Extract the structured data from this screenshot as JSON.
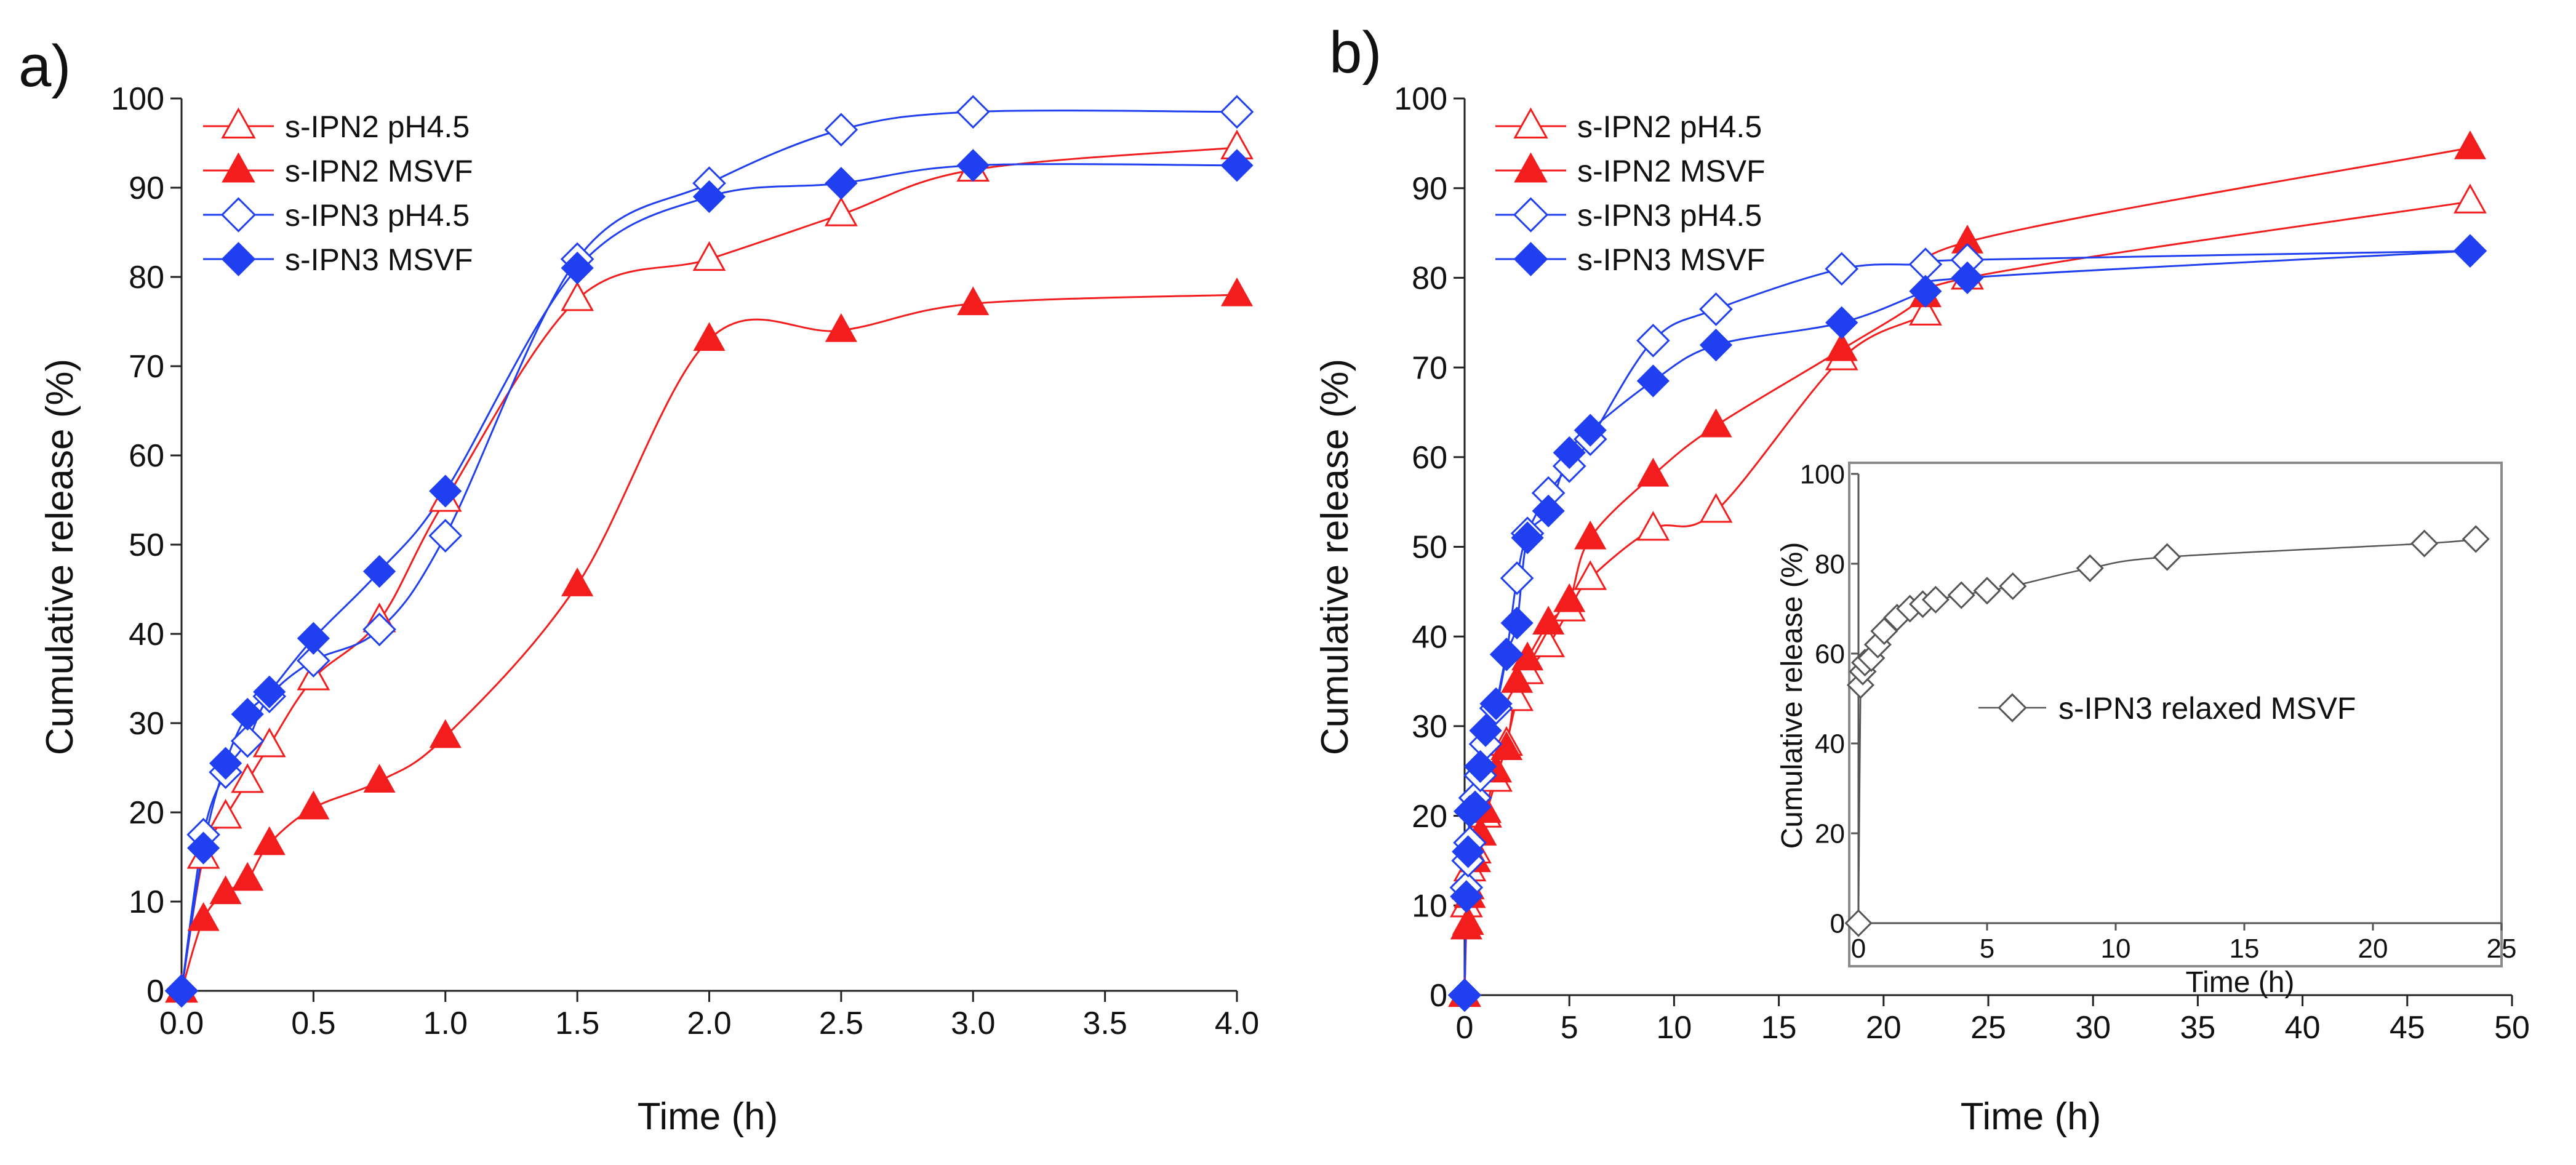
{
  "colors": {
    "red": "#f31d1d",
    "blue": "#1f3ff0",
    "gray": "#555555",
    "black": "#111111"
  },
  "chart_data": [
    {
      "type": "line",
      "panel_label": "a)",
      "xlabel": "Time (h)",
      "ylabel": "Cumulative release (%)",
      "xlim": [
        0,
        4
      ],
      "ylim": [
        0,
        100
      ],
      "xticks": [
        "0.0",
        "0.5",
        "1.0",
        "1.5",
        "2.0",
        "2.5",
        "3.0",
        "3.5",
        "4.0"
      ],
      "yticks": [
        "0",
        "10",
        "20",
        "30",
        "40",
        "50",
        "60",
        "70",
        "80",
        "90",
        "100"
      ],
      "legend_position": "top-left",
      "series": [
        {
          "name": "s-IPN2 pH4.5",
          "color": "#f31d1d",
          "marker": "triangle-open",
          "x": [
            0,
            0.083,
            0.167,
            0.25,
            0.333,
            0.5,
            0.75,
            1.0,
            1.5,
            2.0,
            2.5,
            3.0,
            4.0
          ],
          "y": [
            0,
            15,
            19.5,
            23.5,
            27.5,
            35,
            41.5,
            55,
            77.5,
            82,
            87,
            92,
            94.5
          ]
        },
        {
          "name": "s-IPN2 MSVF",
          "color": "#f31d1d",
          "marker": "triangle-filled",
          "x": [
            0,
            0.083,
            0.167,
            0.25,
            0.333,
            0.5,
            0.75,
            1.0,
            1.5,
            2.0,
            2.5,
            3.0,
            4.0
          ],
          "y": [
            0,
            8,
            11,
            12.5,
            16.5,
            20.5,
            23.5,
            28.5,
            45.5,
            73,
            74,
            77,
            78
          ]
        },
        {
          "name": "s-IPN3 pH4.5",
          "color": "#1f3ff0",
          "marker": "diamond-open",
          "x": [
            0,
            0.083,
            0.167,
            0.25,
            0.333,
            0.5,
            0.75,
            1.0,
            1.5,
            2.0,
            2.5,
            3.0,
            4.0
          ],
          "y": [
            0,
            17.5,
            24.5,
            28,
            33,
            37,
            40.5,
            51,
            82,
            90.5,
            96.5,
            98.5,
            98.5
          ]
        },
        {
          "name": "s-IPN3 MSVF",
          "color": "#1f3ff0",
          "marker": "diamond-filled",
          "x": [
            0,
            0.083,
            0.167,
            0.25,
            0.333,
            0.5,
            0.75,
            1.0,
            1.5,
            2.0,
            2.5,
            3.0,
            4.0
          ],
          "y": [
            0,
            16,
            25.5,
            31,
            33.5,
            39.5,
            47,
            56,
            81,
            89,
            90.5,
            92.5,
            92.5
          ]
        }
      ]
    },
    {
      "type": "line",
      "panel_label": "b)",
      "xlabel": "Time (h)",
      "ylabel": "Cumulative release (%)",
      "xlim": [
        0,
        50
      ],
      "ylim": [
        0,
        100
      ],
      "xticks": [
        "0",
        "5",
        "10",
        "15",
        "20",
        "25",
        "30",
        "35",
        "40",
        "45",
        "50"
      ],
      "yticks": [
        "0",
        "10",
        "20",
        "30",
        "40",
        "50",
        "60",
        "70",
        "80",
        "90",
        "100"
      ],
      "legend_position": "top-left",
      "series": [
        {
          "name": "s-IPN2 pH4.5",
          "color": "#f31d1d",
          "marker": "triangle-open",
          "x": [
            0,
            0.083,
            0.167,
            0.25,
            0.5,
            0.75,
            1,
            1.5,
            2,
            2.5,
            3,
            4,
            5,
            6,
            9,
            12,
            18,
            22,
            24,
            48
          ],
          "y": [
            0,
            10,
            12,
            14,
            16,
            18,
            20,
            24,
            28,
            33,
            36,
            39,
            43,
            46.5,
            52,
            54,
            71,
            76,
            80,
            88.5
          ]
        },
        {
          "name": "s-IPN2 MSVF",
          "color": "#f31d1d",
          "marker": "triangle-filled",
          "x": [
            0,
            0.083,
            0.167,
            0.25,
            0.5,
            0.75,
            1,
            1.5,
            2,
            2.5,
            3,
            4,
            5,
            6,
            9,
            12,
            18,
            22,
            24,
            48
          ],
          "y": [
            0,
            7.5,
            8,
            11,
            15,
            18,
            20.5,
            25,
            27.5,
            35,
            37.5,
            41.5,
            44,
            51,
            58,
            63.5,
            72,
            78,
            84,
            94.5
          ]
        },
        {
          "name": "s-IPN3 pH4.5",
          "color": "#1f3ff0",
          "marker": "diamond-open",
          "x": [
            0,
            0.083,
            0.167,
            0.25,
            0.5,
            0.75,
            1,
            1.5,
            2,
            2.5,
            3,
            4,
            5,
            6,
            9,
            12,
            18,
            22,
            24,
            48
          ],
          "y": [
            0,
            12,
            15,
            17,
            22,
            24.5,
            28,
            32,
            38,
            46.5,
            51.5,
            56,
            59,
            62,
            73,
            76.5,
            81,
            81.5,
            82,
            83
          ]
        },
        {
          "name": "s-IPN3 MSVF",
          "color": "#1f3ff0",
          "marker": "diamond-filled",
          "x": [
            0,
            0.083,
            0.167,
            0.25,
            0.5,
            0.75,
            1,
            1.5,
            2,
            2.5,
            3,
            4,
            5,
            6,
            9,
            12,
            18,
            22,
            24,
            48
          ],
          "y": [
            0,
            11,
            16,
            20.5,
            21,
            25.5,
            29.5,
            32.5,
            38,
            41.5,
            51,
            54,
            60.5,
            63,
            68.5,
            72.5,
            75,
            78.5,
            80,
            83
          ]
        }
      ],
      "inset": {
        "type": "line",
        "xlabel": "Time (h)",
        "ylabel": "Cumulative release (%)",
        "xlim": [
          0,
          25
        ],
        "ylim": [
          0,
          100
        ],
        "xticks": [
          "0",
          "5",
          "10",
          "15",
          "20",
          "25"
        ],
        "yticks": [
          "0",
          "20",
          "40",
          "60",
          "80",
          "100"
        ],
        "series": [
          {
            "name": "s-IPN3 relaxed MSVF",
            "color": "#555555",
            "marker": "diamond-open",
            "x": [
              0,
              0.083,
              0.167,
              0.25,
              0.5,
              0.75,
              1,
              1.5,
              2,
              2.5,
              3,
              4,
              5,
              6,
              9,
              12,
              22,
              24
            ],
            "y": [
              0,
              53,
              56,
              58,
              59,
              62,
              65,
              68,
              70,
              71,
              72,
              73,
              74,
              75,
              79,
              81.5,
              84.5,
              85.5
            ]
          }
        ]
      }
    }
  ]
}
